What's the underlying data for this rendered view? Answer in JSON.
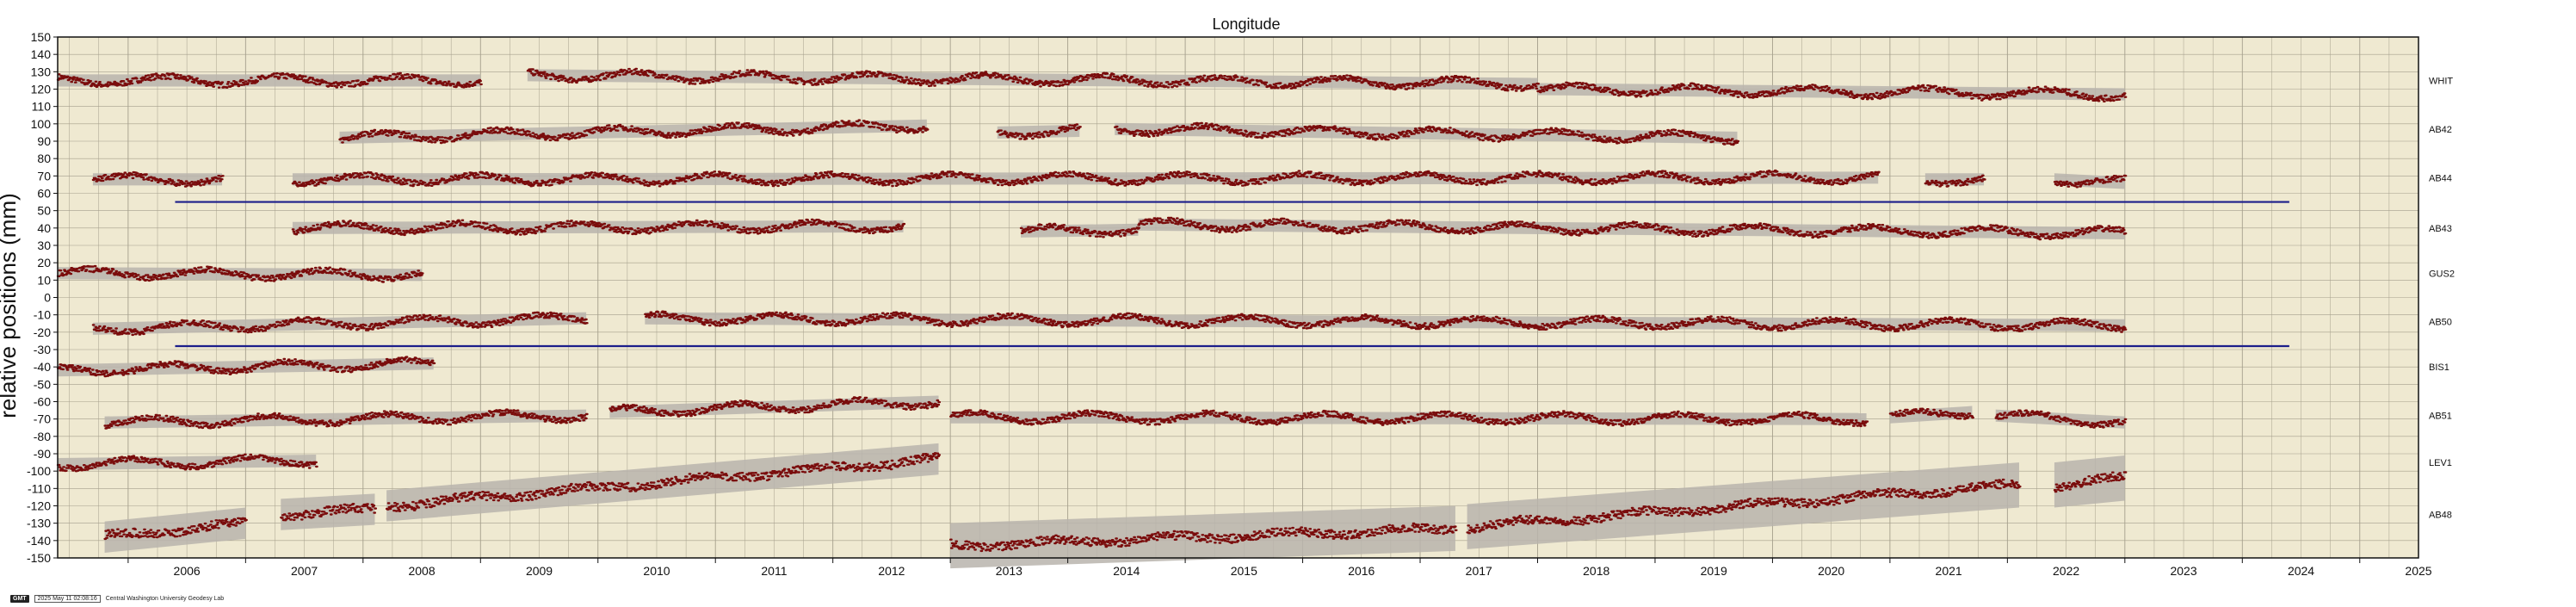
{
  "chart_data": {
    "type": "scatter",
    "title": "Longitude",
    "ylabel": "relative positions (mm)",
    "xlabel": "",
    "xlim": [
      2005.4,
      2025.5
    ],
    "ylim": [
      -150,
      150
    ],
    "x_ticks": [
      "2006",
      "2007",
      "2008",
      "2009",
      "2010",
      "2011",
      "2012",
      "2013",
      "2014",
      "2015",
      "2016",
      "2017",
      "2018",
      "2019",
      "2020",
      "2021",
      "2022",
      "2023",
      "2024",
      "2025"
    ],
    "y_ticks": [
      150,
      140,
      130,
      120,
      110,
      100,
      90,
      80,
      70,
      60,
      50,
      40,
      30,
      20,
      10,
      0,
      -10,
      -20,
      -30,
      -40,
      -50,
      -60,
      -70,
      -80,
      -90,
      -100,
      -110,
      -120,
      -130,
      -140,
      -150
    ],
    "grid": true,
    "colors": {
      "background": "#efe9d1",
      "grid": "#a59f8c",
      "points": "#7a0c0c",
      "error_band": "#b8b4ad",
      "marker_lines": "#1c1e8a"
    },
    "series": [
      {
        "name": "WHIT",
        "offset": 125,
        "segments": [
          [
            2005.4,
            2009.0,
            125,
            125
          ],
          [
            2009.4,
            2018.0,
            128,
            123
          ],
          [
            2018.0,
            2023.0,
            120,
            117
          ]
        ]
      },
      {
        "name": "AB42",
        "offset": 97,
        "segments": [
          [
            2007.8,
            2012.8,
            92,
            99
          ],
          [
            2013.4,
            2014.1,
            95,
            96
          ],
          [
            2014.4,
            2019.7,
            97,
            92
          ]
        ]
      },
      {
        "name": "AB44",
        "offset": 69,
        "segments": [
          [
            2005.7,
            2006.8,
            68,
            68
          ],
          [
            2007.4,
            2020.9,
            68,
            69
          ],
          [
            2021.3,
            2021.8,
            68,
            68
          ],
          [
            2022.4,
            2023.0,
            68,
            66
          ]
        ]
      },
      {
        "name": "AB43",
        "offset": 40,
        "segments": [
          [
            2007.4,
            2012.6,
            40,
            41
          ],
          [
            2013.6,
            2014.6,
            38,
            39
          ],
          [
            2014.6,
            2023.0,
            42,
            37
          ]
        ]
      },
      {
        "name": "GUS2",
        "offset": 14,
        "segments": [
          [
            2005.4,
            2008.5,
            14,
            13
          ]
        ]
      },
      {
        "name": "AB50",
        "offset": -14,
        "segments": [
          [
            2005.7,
            2009.9,
            -18,
            -12
          ],
          [
            2010.4,
            2023.0,
            -12,
            -16
          ]
        ]
      },
      {
        "name": "BIS1",
        "offset": -40,
        "segments": [
          [
            2005.4,
            2008.6,
            -42,
            -38
          ]
        ]
      },
      {
        "name": "AB51",
        "offset": -68,
        "segments": [
          [
            2005.8,
            2009.9,
            -72,
            -68
          ],
          [
            2010.1,
            2012.9,
            -66,
            -60
          ],
          [
            2013.0,
            2020.8,
            -69,
            -70
          ],
          [
            2021.0,
            2021.7,
            -69,
            -66
          ],
          [
            2021.9,
            2023.0,
            -68,
            -72
          ]
        ]
      },
      {
        "name": "LEV1",
        "offset": -95,
        "segments": [
          [
            2005.4,
            2007.6,
            -96,
            -94
          ]
        ]
      },
      {
        "name": "AB48",
        "offset": -125,
        "segments": [
          [
            2005.8,
            2007.0,
            -138,
            -130
          ],
          [
            2007.3,
            2008.1,
            -125,
            -122
          ],
          [
            2008.2,
            2012.9,
            -120,
            -93
          ],
          [
            2013.0,
            2017.3,
            -143,
            -133
          ],
          [
            2017.4,
            2022.1,
            -132,
            -108
          ],
          [
            2022.4,
            2023.0,
            -108,
            -104
          ]
        ]
      }
    ],
    "reference_lines": [
      {
        "y": 55,
        "x_start": 2006.4,
        "x_end": 2024.4
      },
      {
        "y": -28,
        "x_start": 2006.4,
        "x_end": 2024.4
      }
    ]
  },
  "footer": {
    "logo": "GMT",
    "timestamp": "2025 May 11 02:08:16",
    "lab": "Central Washington University Geodesy Lab"
  }
}
